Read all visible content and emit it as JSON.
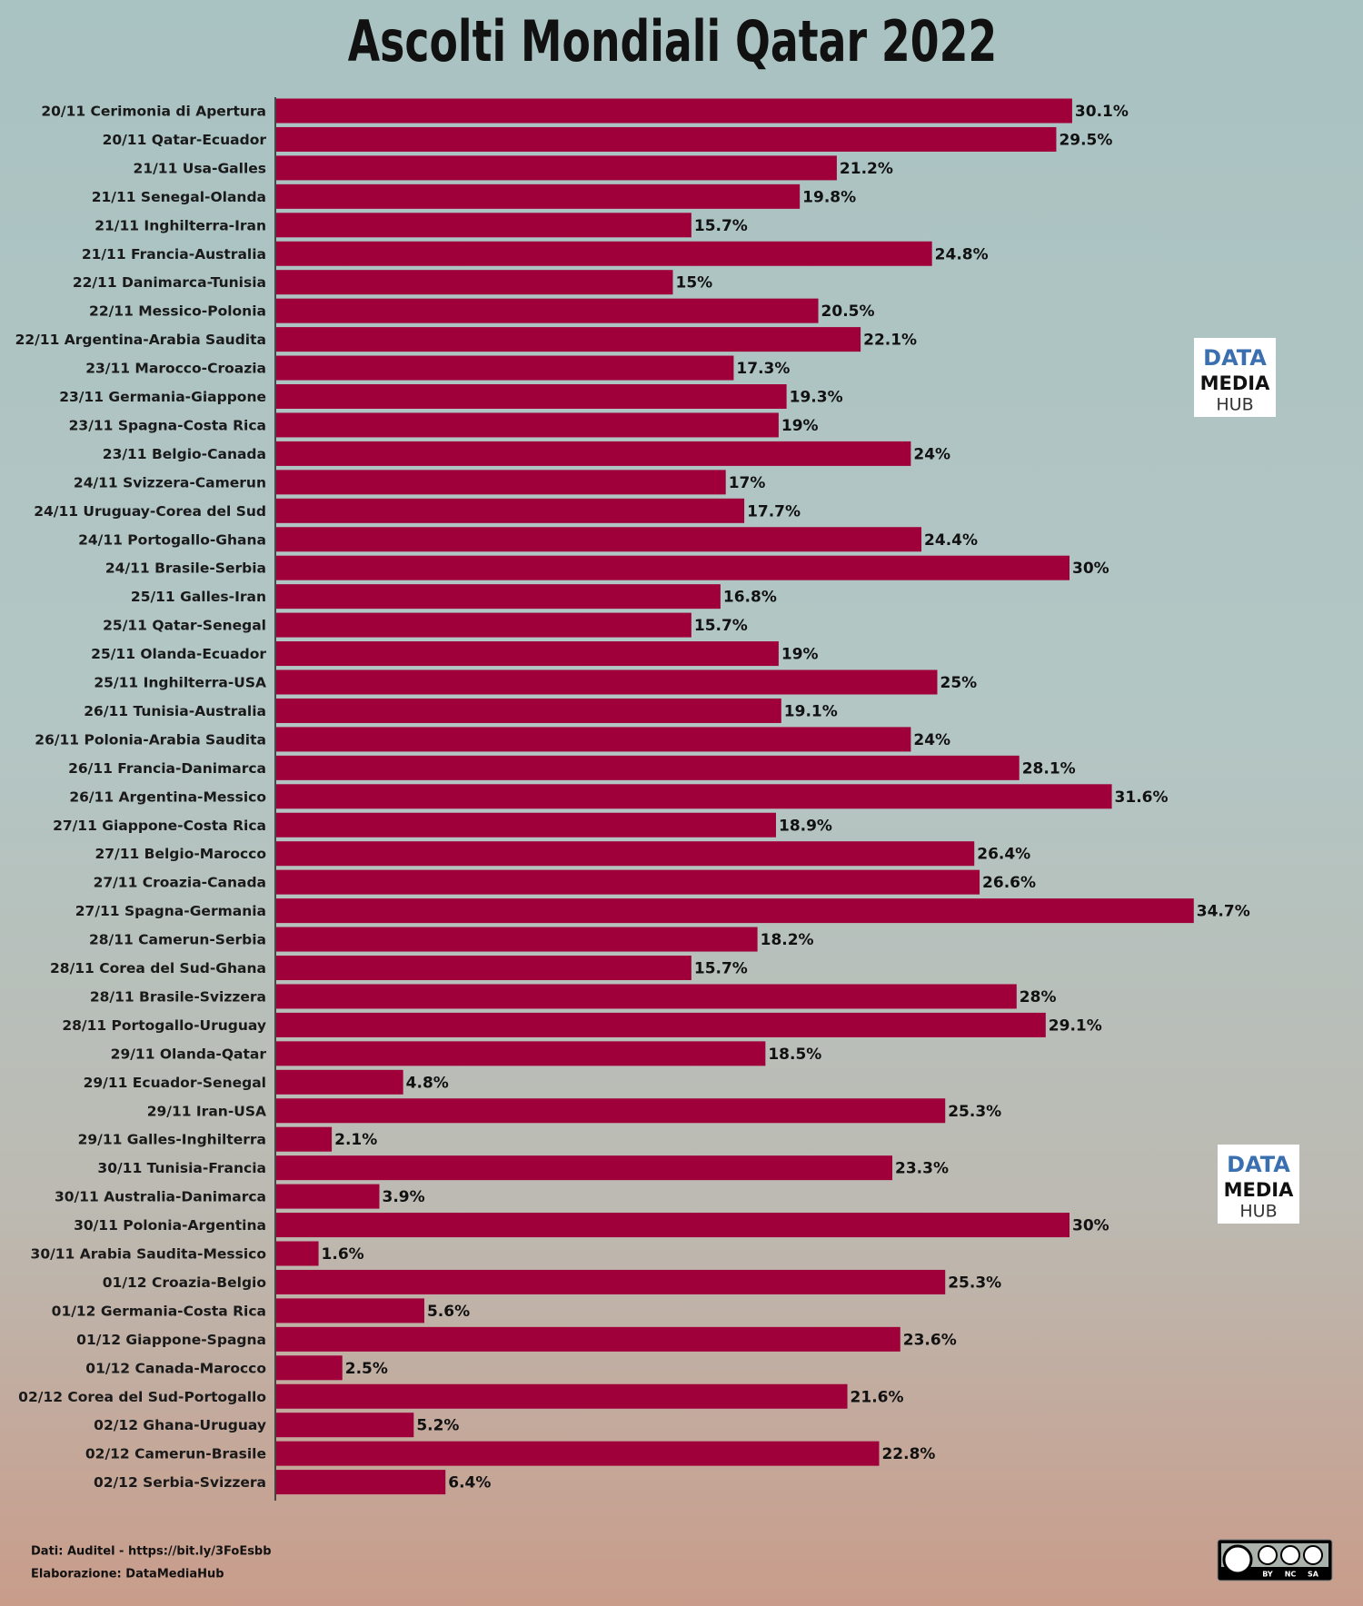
{
  "chart_data": {
    "type": "bar",
    "orientation": "horizontal",
    "title": "Ascolti Mondiali Qatar 2022",
    "categories": [
      "20/11 Cerimonia di Apertura",
      "20/11 Qatar-Ecuador",
      "21/11 Usa-Galles",
      "21/11 Senegal-Olanda",
      "21/11 Inghilterra-Iran",
      "21/11 Francia-Australia",
      "22/11 Danimarca-Tunisia",
      "22/11 Messico-Polonia",
      "22/11 Argentina-Arabia Saudita",
      "23/11 Marocco-Croazia",
      "23/11 Germania-Giappone",
      "23/11 Spagna-Costa Rica",
      "23/11 Belgio-Canada",
      "24/11 Svizzera-Camerun",
      "24/11 Uruguay-Corea del Sud",
      "24/11 Portogallo-Ghana",
      "24/11 Brasile-Serbia",
      "25/11 Galles-Iran",
      "25/11 Qatar-Senegal",
      "25/11 Olanda-Ecuador",
      "25/11 Inghilterra-USA",
      "26/11 Tunisia-Australia",
      "26/11 Polonia-Arabia Saudita",
      "26/11 Francia-Danimarca",
      "26/11 Argentina-Messico",
      "27/11 Giappone-Costa Rica",
      "27/11 Belgio-Marocco",
      "27/11 Croazia-Canada",
      "27/11 Spagna-Germania",
      "28/11 Camerun-Serbia",
      "28/11 Corea del Sud-Ghana",
      "28/11 Brasile-Svizzera",
      "28/11 Portogallo-Uruguay",
      "29/11 Olanda-Qatar",
      "29/11 Ecuador-Senegal",
      "29/11 Iran-USA",
      "29/11 Galles-Inghilterra",
      "30/11 Tunisia-Francia",
      "30/11 Australia-Danimarca",
      "30/11 Polonia-Argentina",
      "30/11 Arabia Saudita-Messico",
      "01/12 Croazia-Belgio",
      "01/12 Germania-Costa Rica",
      "01/12 Giappone-Spagna",
      "01/12 Canada-Marocco",
      "02/12 Corea del Sud-Portogallo",
      "02/12 Ghana-Uruguay",
      "02/12 Camerun-Brasile",
      "02/12 Serbia-Svizzera"
    ],
    "values": [
      30.1,
      29.5,
      21.2,
      19.8,
      15.7,
      24.8,
      15,
      20.5,
      22.1,
      17.3,
      19.3,
      19,
      24,
      17,
      17.7,
      24.4,
      30,
      16.8,
      15.7,
      19,
      25,
      19.1,
      24,
      28.1,
      31.6,
      18.9,
      26.4,
      26.6,
      34.7,
      18.2,
      15.7,
      28,
      29.1,
      18.5,
      4.8,
      25.3,
      2.1,
      23.3,
      3.9,
      30,
      1.6,
      25.3,
      5.6,
      23.6,
      2.5,
      21.6,
      5.2,
      22.8,
      6.4
    ],
    "value_labels": [
      "30.1%",
      "29.5%",
      "21.2%",
      "19.8%",
      "15.7%",
      "24.8%",
      "15%",
      "20.5%",
      "22.1%",
      "17.3%",
      "19.3%",
      "19%",
      "24%",
      "17%",
      "17.7%",
      "24.4%",
      "30%",
      "16.8%",
      "15.7%",
      "19%",
      "25%",
      "19.1%",
      "24%",
      "28.1%",
      "31.6%",
      "18.9%",
      "26.4%",
      "26.6%",
      "34.7%",
      "18.2%",
      "15.7%",
      "28%",
      "29.1%",
      "18.5%",
      "4.8%",
      "25.3%",
      "2.1%",
      "23.3%",
      "3.9%",
      "30%",
      "1.6%",
      "25.3%",
      "5.6%",
      "23.6%",
      "2.5%",
      "21.6%",
      "5.2%",
      "22.8%",
      "6.4%"
    ],
    "color": "#a0003a",
    "source": "Dati: Auditel - https://bit.ly/3FoEsbb",
    "credit": "Elaborazione: DataMediaHub",
    "logo": {
      "line1": "DATA",
      "line2": "MEDIA",
      "line3": "HUB"
    },
    "license": [
      "BY",
      "NC",
      "SA"
    ]
  }
}
